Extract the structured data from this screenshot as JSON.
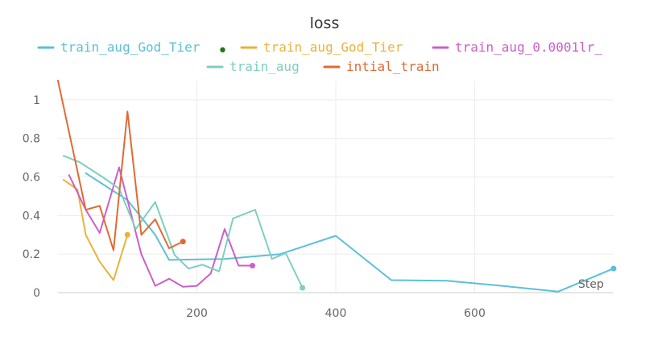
{
  "chart_data": {
    "type": "line",
    "title": "loss",
    "xlabel": "Step",
    "ylabel": "",
    "xlim": [
      0,
      800
    ],
    "ylim": [
      0,
      1.1
    ],
    "grid": true,
    "legend_position": "top-center",
    "x_ticks": [
      200,
      400,
      600
    ],
    "y_ticks": [
      0,
      0.2,
      0.4,
      0.6,
      0.8,
      1
    ],
    "series": [
      {
        "name": "train_aug_God_Tier",
        "legend_label": "train_aug_God_Tier",
        "color": "#5bc0d8",
        "x": [
          40,
          100,
          140,
          160,
          240,
          320,
          400,
          480,
          560,
          640,
          720,
          800
        ],
        "y": [
          0.62,
          0.48,
          0.3,
          0.17,
          0.175,
          0.2,
          0.295,
          0.065,
          0.062,
          0.035,
          0.005,
          0.125
        ]
      },
      {
        "name": "train_aug_God_Tier",
        "legend_label": "train_aug_God_Tier",
        "color": "#e8b33a",
        "x": [
          8,
          28,
          40,
          60,
          80,
          100
        ],
        "y": [
          0.585,
          0.535,
          0.3,
          0.16,
          0.065,
          0.3
        ]
      },
      {
        "name": "train_aug_0.0001lr_",
        "legend_label": "train_aug_0.0001lr_",
        "color": "#cc5fc8",
        "x": [
          16,
          40,
          60,
          88,
          120,
          140,
          160,
          180,
          200,
          220,
          240,
          260,
          280
        ],
        "y": [
          0.61,
          0.43,
          0.31,
          0.65,
          0.2,
          0.035,
          0.072,
          0.03,
          0.035,
          0.1,
          0.33,
          0.14,
          0.14
        ]
      },
      {
        "name": "train_aug",
        "legend_label": "train_aug",
        "color": "#7fcfc0",
        "x": [
          8,
          32,
          64,
          88,
          112,
          140,
          168,
          188,
          208,
          232,
          252,
          284,
          308,
          328,
          352
        ],
        "y": [
          0.71,
          0.675,
          0.6,
          0.54,
          0.33,
          0.47,
          0.195,
          0.125,
          0.145,
          0.11,
          0.385,
          0.43,
          0.175,
          0.205,
          0.025
        ]
      },
      {
        "name": "intial_train",
        "legend_label": "intial_train",
        "color": "#e06a35",
        "x": [
          0,
          40,
          60,
          80,
          100,
          120,
          140,
          160,
          180
        ],
        "y": [
          1.1,
          0.43,
          0.45,
          0.22,
          0.94,
          0.3,
          0.38,
          0.23,
          0.265
        ]
      }
    ],
    "annotations": [
      "•"
    ]
  }
}
